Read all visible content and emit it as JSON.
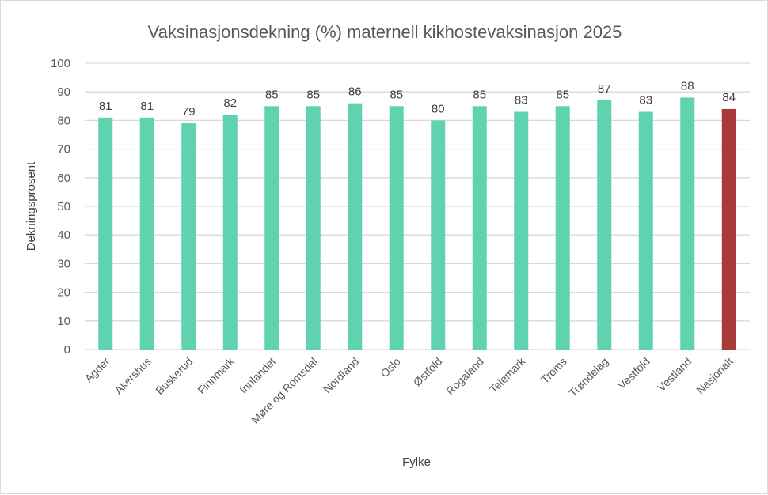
{
  "chart_data": {
    "type": "bar",
    "title": "Vaksinasjonsdekning  (%) maternell kikhostevaksinasjon 2025",
    "xlabel": "Fylke",
    "ylabel": "Dekningsprosent",
    "ylim": [
      0,
      100
    ],
    "yticks": [
      0,
      10,
      20,
      30,
      40,
      50,
      60,
      70,
      80,
      90,
      100
    ],
    "grid": true,
    "legend": "none",
    "categories": [
      "Agder",
      "Akershus",
      "Buskerud",
      "Finnmark",
      "Innlandet",
      "Møre og Romsdal",
      "Nordland",
      "Oslo",
      "Østfold",
      "Rogaland",
      "Telemark",
      "Troms",
      "Trøndelag",
      "Vestfold",
      "Vestland",
      "Nasjonalt"
    ],
    "values": [
      81,
      81,
      79,
      82,
      85,
      85,
      86,
      85,
      80,
      85,
      83,
      85,
      87,
      83,
      88,
      84
    ],
    "data_labels": [
      "81",
      "81",
      "79",
      "82",
      "85",
      "85",
      "86",
      "85",
      "80",
      "85",
      "83",
      "85",
      "87",
      "83",
      "88",
      "84"
    ],
    "colors": {
      "bar": "#5fd3b0",
      "highlight": "#a83a3a",
      "highlight_category": "Nasjonalt",
      "grid": "#d9d9d9"
    }
  }
}
